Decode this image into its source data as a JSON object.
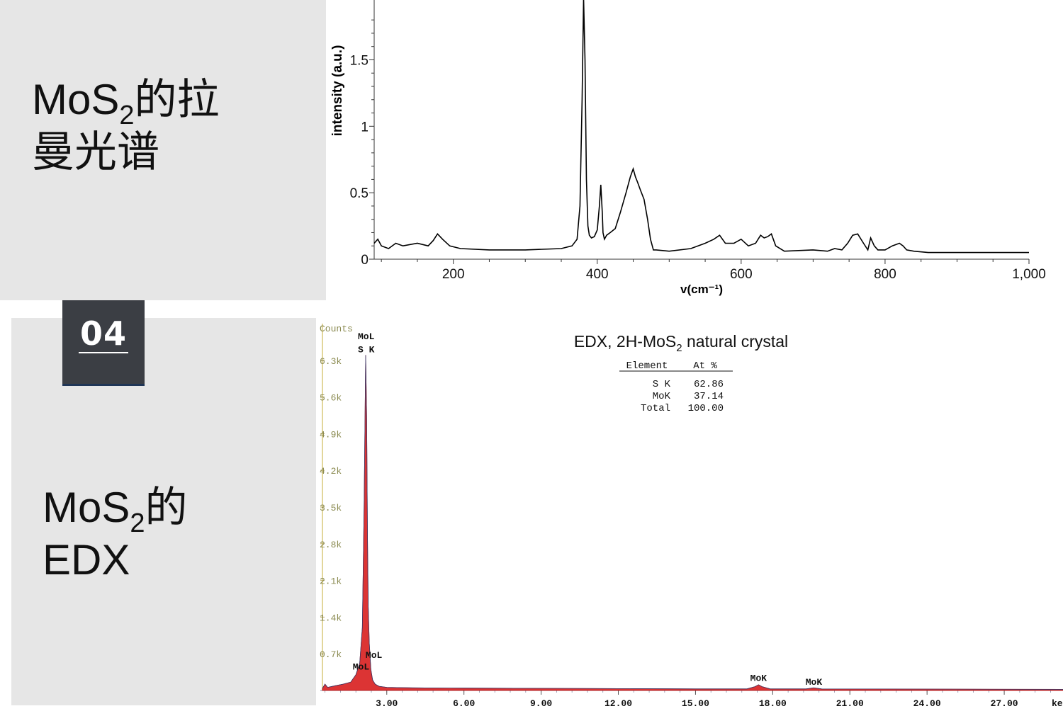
{
  "raman_label": {
    "line1_prefix": "MoS",
    "line1_sub": "2",
    "line1_suffix": "的拉",
    "line2": "曼光谱"
  },
  "edx_label": {
    "line1_prefix": "MoS",
    "line1_sub": "2",
    "line1_suffix": "的",
    "line2": "EDX"
  },
  "badge": "04",
  "chart_data": [
    {
      "type": "line",
      "xlabel": "v(cm⁻¹)",
      "ylabel": "intensity (a.u.)",
      "xlim": [
        90,
        1000
      ],
      "ylim": [
        0,
        1.95
      ],
      "xticks": [
        200,
        400,
        600,
        800,
        1000
      ],
      "xtick_labels": [
        "200",
        "400",
        "600",
        "800",
        "1,000"
      ],
      "yticks": [
        0,
        0.5,
        1,
        1.5
      ],
      "ytick_labels": [
        "0",
        "0.5",
        "1",
        "1.5"
      ],
      "color": "#000000",
      "x": [
        90,
        95,
        100,
        110,
        120,
        130,
        150,
        165,
        172,
        178,
        185,
        195,
        210,
        250,
        300,
        350,
        365,
        372,
        376,
        379,
        381,
        383,
        385,
        387,
        389,
        392,
        396,
        400,
        403,
        405,
        407,
        408,
        410,
        413,
        418,
        425,
        432,
        440,
        446,
        450,
        453,
        456,
        460,
        465,
        470,
        474,
        478,
        482,
        500,
        530,
        550,
        562,
        570,
        578,
        590,
        600,
        610,
        620,
        627,
        632,
        637,
        642,
        648,
        660,
        700,
        720,
        730,
        740,
        748,
        755,
        762,
        770,
        776,
        780,
        785,
        790,
        800,
        810,
        820,
        825,
        830,
        840,
        860,
        900,
        950,
        1000
      ],
      "y": [
        0.12,
        0.15,
        0.1,
        0.08,
        0.12,
        0.1,
        0.12,
        0.1,
        0.14,
        0.19,
        0.15,
        0.1,
        0.08,
        0.07,
        0.07,
        0.08,
        0.1,
        0.15,
        0.4,
        1.2,
        2.0,
        1.5,
        0.6,
        0.25,
        0.18,
        0.16,
        0.17,
        0.22,
        0.4,
        0.56,
        0.35,
        0.2,
        0.15,
        0.18,
        0.2,
        0.23,
        0.35,
        0.5,
        0.62,
        0.68,
        0.62,
        0.58,
        0.52,
        0.45,
        0.3,
        0.15,
        0.07,
        0.07,
        0.06,
        0.08,
        0.12,
        0.15,
        0.18,
        0.12,
        0.12,
        0.15,
        0.1,
        0.12,
        0.18,
        0.16,
        0.17,
        0.19,
        0.1,
        0.06,
        0.07,
        0.06,
        0.08,
        0.07,
        0.12,
        0.18,
        0.19,
        0.12,
        0.07,
        0.16,
        0.1,
        0.07,
        0.07,
        0.1,
        0.12,
        0.1,
        0.07,
        0.06,
        0.05,
        0.05,
        0.05,
        0.05
      ]
    },
    {
      "type": "area",
      "title_prefix": "EDX, 2H-MoS",
      "title_sub": "2",
      "title_suffix": " natural crystal",
      "ylabel": "Counts",
      "ylim": [
        0,
        7000
      ],
      "xlim": [
        0.5,
        30
      ],
      "yticks": [
        700,
        1400,
        2100,
        2800,
        3500,
        4200,
        4900,
        5600,
        6300
      ],
      "ytick_labels": [
        "0.7k",
        "1.4k",
        "2.1k",
        "2.8k",
        "3.5k",
        "4.2k",
        "4.9k",
        "5.6k",
        "6.3k"
      ],
      "xticks": [
        3,
        6,
        9,
        12,
        15,
        18,
        21,
        24,
        27
      ],
      "xtick_labels": [
        "3.00",
        "6.00",
        "9.00",
        "12.00",
        "15.00",
        "18.00",
        "21.00",
        "24.00",
        "27.00"
      ],
      "xunit_label": "ke",
      "color": "#d81e1e",
      "x": [
        0.5,
        0.6,
        0.7,
        1.0,
        1.3,
        1.6,
        1.8,
        1.95,
        2.05,
        2.12,
        2.18,
        2.22,
        2.25,
        2.28,
        2.32,
        2.38,
        2.45,
        2.55,
        2.7,
        3.0,
        4.0,
        6.0,
        9.0,
        12.0,
        15.0,
        17.0,
        17.3,
        17.45,
        17.6,
        17.9,
        19.3,
        19.6,
        19.9,
        22.0,
        25.0,
        30.0
      ],
      "y": [
        40,
        120,
        60,
        90,
        120,
        160,
        300,
        520,
        1200,
        3500,
        6400,
        5200,
        3000,
        1600,
        900,
        400,
        200,
        120,
        80,
        60,
        50,
        45,
        40,
        35,
        30,
        30,
        70,
        110,
        70,
        30,
        30,
        50,
        30,
        28,
        25,
        20
      ],
      "peak_labels": [
        {
          "text": "MoL",
          "x": 2.2,
          "y": 6700
        },
        {
          "text": "S K",
          "x": 2.2,
          "y": 6450
        },
        {
          "text": "MoL",
          "x": 2.5,
          "y": 620
        },
        {
          "text": "MoL",
          "x": 2.0,
          "y": 400
        },
        {
          "text": "MoK",
          "x": 17.45,
          "y": 180
        },
        {
          "text": "MoK",
          "x": 19.6,
          "y": 110
        }
      ],
      "table": {
        "headers": [
          "Element",
          "At %"
        ],
        "rows": [
          [
            "S K",
            "62.86"
          ],
          [
            "MoK",
            "37.14"
          ],
          [
            "Total",
            "100.00"
          ]
        ]
      }
    }
  ]
}
